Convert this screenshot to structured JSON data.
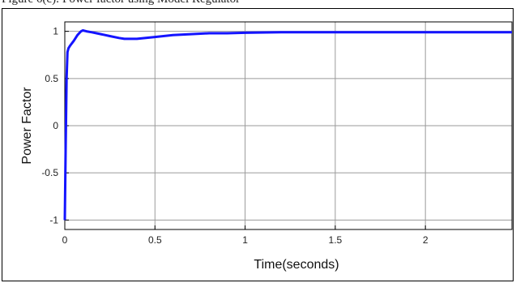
{
  "caption": "Figure 6(c): Power factor using Model Regulator",
  "chart_data": {
    "type": "line",
    "title": "",
    "xlabel": "Time(seconds)",
    "ylabel": "Power Factor",
    "xlim": [
      0,
      2.48
    ],
    "ylim": [
      -1.1,
      1.1
    ],
    "xticks": [
      0,
      0.5,
      1,
      1.5,
      2
    ],
    "xtick_labels": [
      "0",
      "0.5",
      "1",
      "1.5",
      "2"
    ],
    "yticks": [
      -1,
      -0.5,
      0,
      0.5,
      1
    ],
    "ytick_labels": [
      "-1",
      "-0.5",
      "0",
      "0.5",
      "1"
    ],
    "grid": true,
    "series": [
      {
        "color": "#1414ff",
        "x": [
          0,
          0.005,
          0.01,
          0.015,
          0.02,
          0.03,
          0.05,
          0.07,
          0.09,
          0.1,
          0.12,
          0.15,
          0.2,
          0.25,
          0.3,
          0.33,
          0.36,
          0.4,
          0.45,
          0.5,
          0.6,
          0.7,
          0.8,
          0.9,
          1.0,
          1.2,
          1.4,
          1.6,
          1.8,
          2.0,
          2.2,
          2.4,
          2.48
        ],
        "values": [
          -1,
          -0.2,
          0.5,
          0.78,
          0.82,
          0.85,
          0.9,
          0.96,
          1.0,
          1.01,
          1.0,
          0.99,
          0.97,
          0.95,
          0.93,
          0.92,
          0.92,
          0.92,
          0.93,
          0.94,
          0.96,
          0.97,
          0.98,
          0.98,
          0.985,
          0.99,
          0.99,
          0.99,
          0.99,
          0.99,
          0.99,
          0.99,
          0.99
        ]
      }
    ]
  }
}
